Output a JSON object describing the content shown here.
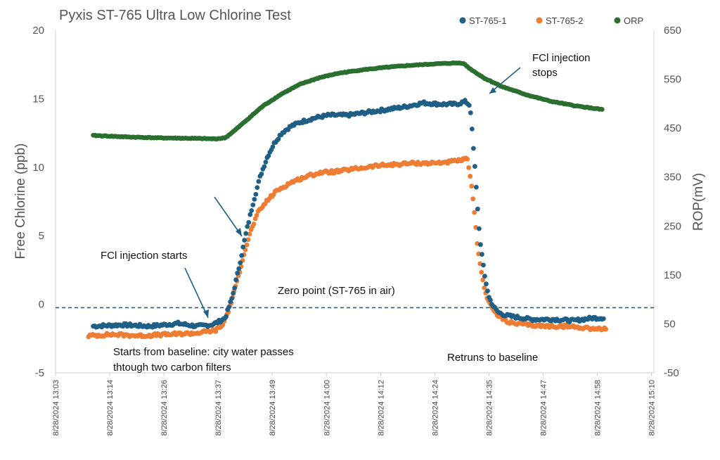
{
  "chart_data": {
    "type": "line",
    "title": "Pyxis ST-765 Ultra Low Chlorine Test",
    "ylabel": "Free Chlorine (ppb)",
    "y2label": "ROP(mV)",
    "ylim": [
      -5,
      20
    ],
    "y2lim": [
      -50,
      650
    ],
    "yticks": [
      -5,
      0,
      5,
      10,
      15,
      20
    ],
    "yticks_labels": [
      "-5",
      "0",
      "5",
      "10",
      "15",
      "20"
    ],
    "y2ticks": [
      -50,
      50,
      150,
      250,
      350,
      450,
      550,
      650
    ],
    "xlim_minutes": [
      0,
      127
    ],
    "xticks_minutes": [
      0,
      11.5,
      23,
      34.5,
      46,
      57.5,
      69,
      80.5,
      92,
      103.5,
      115,
      126.5
    ],
    "xticks_labels": [
      "8/28/2024 13:03",
      "8/28/2024 13:14",
      "8/28/2024 13:26",
      "8/28/2024 13:37",
      "8/28/2024 13:49",
      "8/28/2024 14:00",
      "8/28/2024 14:12",
      "8/28/2024 14:24",
      "8/28/2024 14:35",
      "8/28/2024 14:47",
      "8/28/2024 14:58",
      "8/28/2024 15:10"
    ],
    "zero_line": -0.25,
    "series": [
      {
        "name": "ST-765-1",
        "axis": "left",
        "color": "#1f5f86",
        "x": [
          8,
          14,
          20,
          26,
          30,
          33,
          34.5,
          36,
          37.5,
          39,
          40.5,
          42,
          43.5,
          45,
          46.5,
          48,
          50,
          52,
          55,
          58,
          62,
          66,
          70,
          74,
          78,
          82,
          85,
          87,
          88,
          89,
          90,
          91,
          92,
          93,
          94,
          95.5,
          97,
          99,
          101,
          103,
          106,
          110,
          114,
          116.5
        ],
        "y": [
          -1.6,
          -1.5,
          -1.6,
          -1.4,
          -1.6,
          -1.5,
          -1.3,
          -1.0,
          0.5,
          2.8,
          5.3,
          7.5,
          9.4,
          10.8,
          11.8,
          12.5,
          13.0,
          13.3,
          13.6,
          13.8,
          13.8,
          14.0,
          14.2,
          14.4,
          14.7,
          14.6,
          14.6,
          14.8,
          14.5,
          10.0,
          5.0,
          2.2,
          0.5,
          -0.2,
          -0.6,
          -0.8,
          -0.9,
          -1.0,
          -1.1,
          -1.1,
          -1.1,
          -1.2,
          -1.0,
          -1.0
        ],
        "markers_every_minutes": 0.3
      },
      {
        "name": "ST-765-2",
        "axis": "left",
        "color": "#ee7d34",
        "x": [
          7,
          12,
          18,
          24,
          30,
          34,
          35.5,
          37,
          38.5,
          40,
          41.5,
          43,
          45,
          47,
          50,
          53,
          56,
          60,
          64,
          68,
          72,
          76,
          80,
          84,
          86,
          87.5,
          88.5,
          89.5,
          90.5,
          91.5,
          92.5,
          93.5,
          95,
          97,
          100,
          104,
          108,
          112,
          115,
          117
        ],
        "y": [
          -2.3,
          -2.2,
          -2.3,
          -2.2,
          -2.1,
          -1.9,
          -1.5,
          -0.2,
          1.6,
          3.7,
          5.4,
          6.7,
          7.6,
          8.3,
          8.9,
          9.3,
          9.6,
          9.7,
          9.9,
          10.1,
          10.2,
          10.3,
          10.3,
          10.4,
          10.5,
          10.6,
          8.0,
          4.5,
          2.0,
          0.6,
          -0.2,
          -0.7,
          -1.1,
          -1.4,
          -1.5,
          -1.6,
          -1.6,
          -1.7,
          -1.8,
          -1.8
        ],
        "markers_every_minutes": 0.3
      },
      {
        "name": "ORP",
        "axis": "right",
        "color": "#2b6f2f",
        "x": [
          8,
          15,
          22,
          29,
          34,
          36,
          38,
          41,
          44,
          48,
          52,
          56,
          60,
          65,
          70,
          75,
          80,
          85,
          86.5,
          88,
          91,
          95,
          100,
          105,
          110,
          116
        ],
        "y": [
          435,
          432,
          430,
          429,
          428,
          430,
          445,
          470,
          495,
          520,
          540,
          553,
          562,
          569,
          574,
          578,
          581,
          583,
          583,
          571,
          552,
          534,
          518,
          505,
          496,
          488
        ],
        "markers_every_minutes": 0.3
      }
    ],
    "legend_position": "top-right",
    "annotations": [
      {
        "text": "FCl injection starts"
      },
      {
        "text": "Zero point (ST-765 in air)"
      },
      {
        "text": "FCl injection"
      },
      {
        "text": "stops"
      },
      {
        "text": "Starts from baseline: city water passes"
      },
      {
        "text": "thtough two carbon filters"
      },
      {
        "text": "Retruns to baseline"
      }
    ]
  }
}
